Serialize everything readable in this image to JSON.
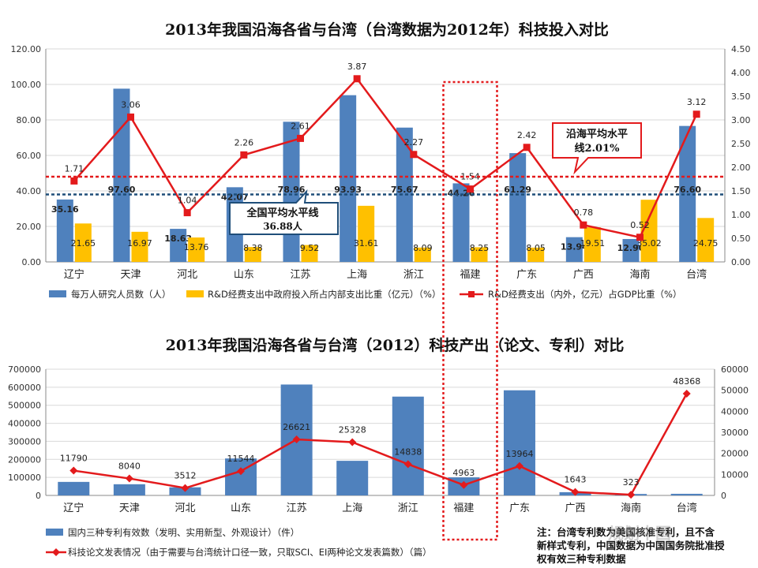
{
  "chart_data": [
    {
      "type": "bar",
      "title": "2013年我国沿海各省与台湾（台湾数据为2012年）科技投入对比",
      "categories": [
        "辽宁",
        "天津",
        "河北",
        "山东",
        "江苏",
        "上海",
        "浙江",
        "福建",
        "广东",
        "广西",
        "海南",
        "台湾"
      ],
      "ylim": [
        0,
        120
      ],
      "y_ticks": [
        "0.00",
        "20.00",
        "40.00",
        "60.00",
        "80.00",
        "100.00",
        "120.00"
      ],
      "y2lim": [
        0,
        4.5
      ],
      "y2_ticks": [
        "0.00",
        "0.50",
        "1.00",
        "1.50",
        "2.00",
        "2.50",
        "3.00",
        "3.50",
        "4.00",
        "4.50"
      ],
      "series": [
        {
          "name": "每万人研究人员数（人）",
          "type": "bar",
          "axis": "left",
          "color": "#4F81BD",
          "values": [
            35.16,
            97.6,
            18.63,
            42.07,
            78.96,
            93.93,
            75.67,
            44.26,
            61.29,
            13.94,
            12.9,
            76.6
          ]
        },
        {
          "name": "R&D经费支出中政府投入所占内部支出比重（亿元）（%）",
          "type": "bar",
          "axis": "left",
          "color": "#FFC000",
          "values": [
            21.65,
            16.97,
            13.76,
            8.38,
            9.52,
            31.61,
            8.09,
            8.25,
            8.05,
            19.51,
            35.02,
            24.75
          ]
        },
        {
          "name": "R&D经费支出（内外，亿元）占GDP比重（%）",
          "type": "line",
          "axis": "right",
          "color": "#E31A1C",
          "values": [
            1.71,
            3.06,
            1.04,
            2.26,
            2.61,
            3.87,
            2.27,
            1.54,
            2.42,
            0.78,
            0.52,
            3.12
          ]
        }
      ],
      "reference_lines": [
        {
          "label": "沿海平均水平线2.01%",
          "y_left": 48,
          "color": "#E31A1C"
        },
        {
          "label": "全国平均水平线36.88人",
          "y_left": 38,
          "color": "#1F4E79"
        }
      ],
      "callouts": {
        "coastal_line1": "沿海平均水平",
        "coastal_line2": "线2.01%",
        "national_line1": "全国平均水平线",
        "national_line2": "36.88人"
      },
      "grid": true,
      "legend_position": "bottom"
    },
    {
      "type": "bar",
      "title": "2013年我国沿海各省与台湾（2012）科技产出（论文、专利）对比",
      "categories": [
        "辽宁",
        "天津",
        "河北",
        "山东",
        "江苏",
        "上海",
        "浙江",
        "福建",
        "广东",
        "广西",
        "海南",
        "台湾"
      ],
      "ylim": [
        0,
        700000
      ],
      "y_ticks": [
        "0",
        "100000",
        "200000",
        "300000",
        "400000",
        "500000",
        "600000",
        "700000"
      ],
      "y2lim": [
        0,
        60000
      ],
      "y2_ticks": [
        "0",
        "10000",
        "20000",
        "30000",
        "40000",
        "50000",
        "60000"
      ],
      "series": [
        {
          "name": "国内三种专利有效数（发明、实用新型、外观设计）（件）",
          "type": "bar",
          "axis": "left",
          "color": "#4F81BD",
          "values": [
            75000,
            62000,
            45000,
            205000,
            615000,
            192000,
            548000,
            100000,
            583000,
            18000,
            8000,
            9000
          ]
        },
        {
          "name": "科技论文发表情况（由于需要与台湾统计口径一致，只取SCI、EI两种论文发表篇数）（篇）",
          "type": "line",
          "axis": "right",
          "color": "#E31A1C",
          "values": [
            11790,
            8040,
            3512,
            11544,
            26621,
            25328,
            14838,
            4963,
            13964,
            1643,
            323,
            48368
          ]
        }
      ],
      "grid": true,
      "legend_position": "bottom"
    }
  ],
  "note": {
    "line1": "注：台湾专利数为美国核准专利，且不含",
    "line2": "新样式专利，中国数据为中国国务院批准授",
    "line3": "权有效三种专利数据"
  },
  "watermark": "规划中国",
  "highlight": "福建"
}
